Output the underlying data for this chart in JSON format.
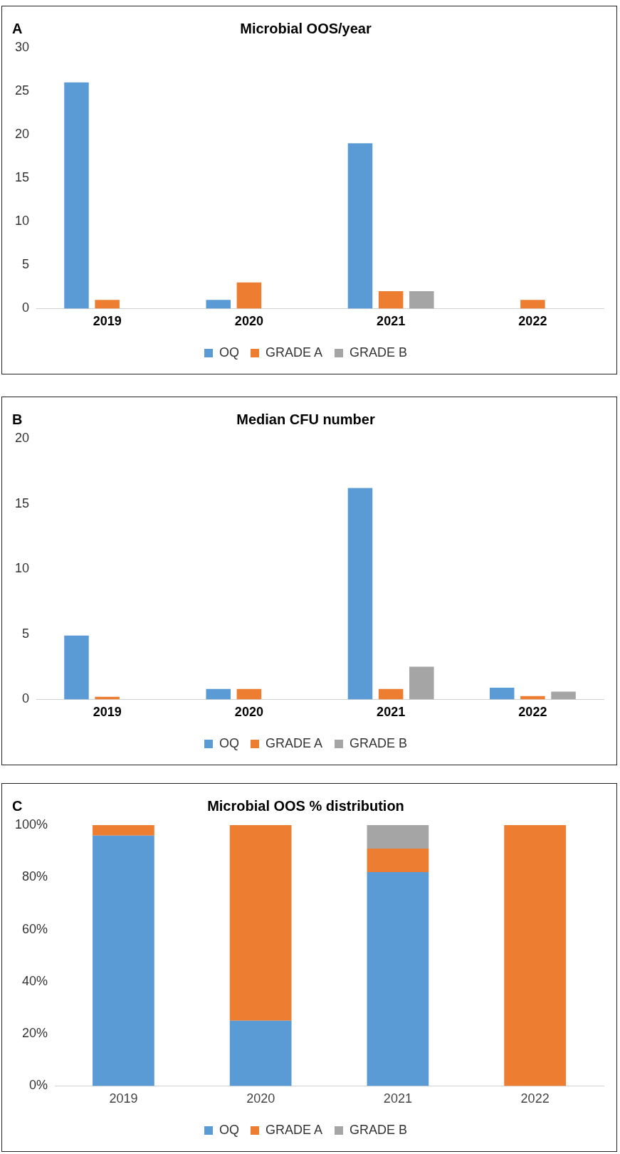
{
  "chart_data": [
    {
      "type": "bar",
      "title": "Microbial OOS/year",
      "annotations": [
        "A"
      ],
      "categories": [
        "2019",
        "2020",
        "2021",
        "2022"
      ],
      "ylim": [
        0,
        30
      ],
      "yticks": [
        0,
        5,
        10,
        15,
        20,
        25,
        30
      ],
      "legend": "bottom",
      "series": [
        {
          "name": "OQ",
          "color": "#5b9bd5",
          "values": [
            26,
            1,
            19,
            0
          ]
        },
        {
          "name": "GRADE A",
          "color": "#ed7d31",
          "values": [
            1,
            3,
            2,
            1
          ]
        },
        {
          "name": "GRADE B",
          "color": "#a5a5a5",
          "values": [
            0,
            0,
            2,
            0
          ]
        }
      ]
    },
    {
      "type": "bar",
      "title": "Median CFU number",
      "annotations": [
        "B"
      ],
      "categories": [
        "2019",
        "2020",
        "2021",
        "2022"
      ],
      "ylim": [
        0,
        20
      ],
      "yticks": [
        0,
        5,
        10,
        15,
        20
      ],
      "legend": "bottom",
      "series": [
        {
          "name": "OQ",
          "color": "#5b9bd5",
          "values": [
            4.9,
            0.8,
            16.2,
            0.9
          ]
        },
        {
          "name": "GRADE A",
          "color": "#ed7d31",
          "values": [
            0.2,
            0.8,
            0.8,
            0.25
          ]
        },
        {
          "name": "GRADE B",
          "color": "#a5a5a5",
          "values": [
            0,
            0,
            2.5,
            0.6
          ]
        }
      ]
    },
    {
      "type": "bar",
      "stacked": true,
      "title": "Microbial OOS % distribution",
      "annotations": [
        "C"
      ],
      "categories": [
        "2019",
        "2020",
        "2021",
        "2022"
      ],
      "ylim": [
        0,
        100
      ],
      "yticks": [
        {
          "value": 0,
          "label": "0%"
        },
        {
          "value": 20,
          "label": "20%"
        },
        {
          "value": 40,
          "label": "40%"
        },
        {
          "value": 60,
          "label": "60%"
        },
        {
          "value": 80,
          "label": "80%"
        },
        {
          "value": 100,
          "label": "100%"
        }
      ],
      "legend": "bottom",
      "series": [
        {
          "name": "OQ",
          "color": "#5b9bd5",
          "values": [
            96,
            25,
            82,
            0
          ]
        },
        {
          "name": "GRADE A",
          "color": "#ed7d31",
          "values": [
            4,
            75,
            9,
            100
          ]
        },
        {
          "name": "GRADE B",
          "color": "#a5a5a5",
          "values": [
            0,
            0,
            9,
            0
          ]
        }
      ]
    }
  ]
}
